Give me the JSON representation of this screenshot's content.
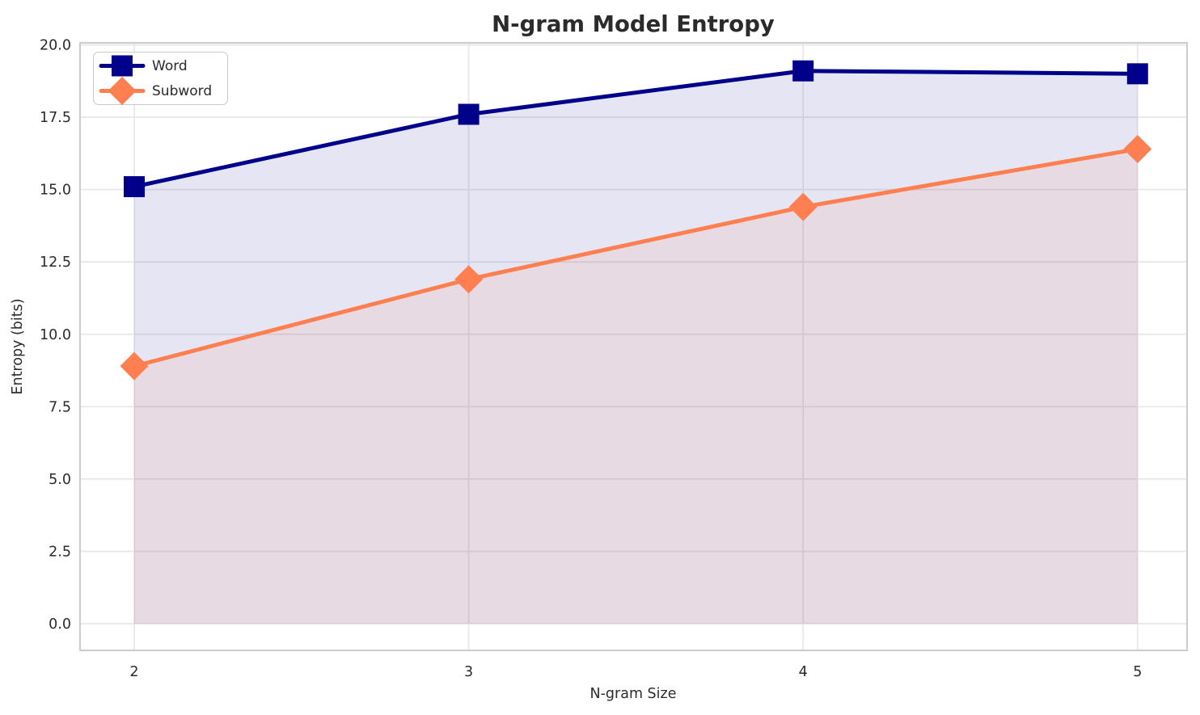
{
  "chart_data": {
    "type": "line",
    "title": "N-gram Model Entropy",
    "xlabel": "N-gram Size",
    "ylabel": "Entropy (bits)",
    "x": [
      2,
      3,
      4,
      5
    ],
    "series": [
      {
        "name": "Word",
        "values": [
          15.1,
          17.6,
          19.1,
          19.0
        ],
        "color": "#00008B",
        "marker": "square"
      },
      {
        "name": "Subword",
        "values": [
          8.9,
          11.9,
          14.4,
          16.4
        ],
        "color": "#FF7F50",
        "marker": "diamond"
      }
    ],
    "fill_to_zero": true,
    "fill_opacity": 0.1,
    "x_ticks": [
      "2",
      "3",
      "4",
      "5"
    ],
    "x_tick_values": [
      2,
      3,
      4,
      5
    ],
    "y_ticks": [
      "0.0",
      "2.5",
      "5.0",
      "7.5",
      "10.0",
      "12.5",
      "15.0",
      "17.5",
      "20.0"
    ],
    "y_tick_values": [
      0,
      2.5,
      5,
      7.5,
      10,
      12.5,
      15,
      17.5,
      20
    ],
    "xlim": [
      1.838,
      5.148
    ],
    "ylim": [
      -0.92,
      20.07
    ],
    "grid": true,
    "legend_position": "upper left",
    "line_width": 5,
    "marker_size": 26,
    "colors": {
      "grid": "#e8e8e8",
      "spine": "#cccccc",
      "text": "#2b2b2b",
      "background": "#ffffff"
    }
  }
}
